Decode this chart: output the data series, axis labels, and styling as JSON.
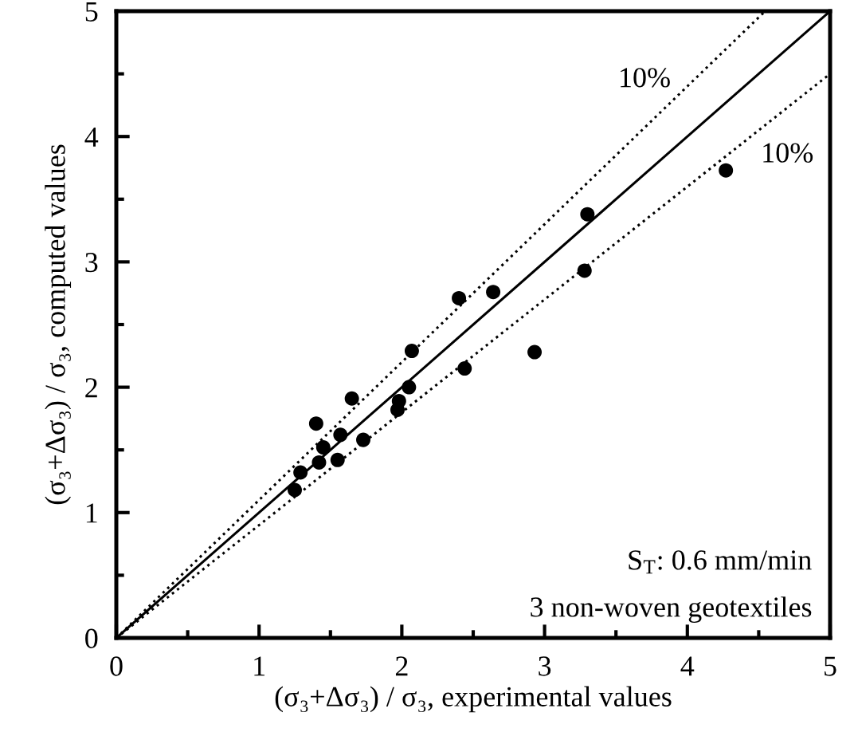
{
  "chart_data": {
    "type": "scatter",
    "xlabel": "(σ₃+Δσ₃) / σ₃, experimental values",
    "ylabel": "(σ₃+Δσ₃) / σ₃, computed values",
    "xlim": [
      0,
      5
    ],
    "ylim": [
      0,
      5
    ],
    "xticks": [
      0,
      {
        "value": 0.5,
        "label": null
      },
      1,
      {
        "value": 1.5,
        "label": null
      },
      2,
      {
        "value": 2.5,
        "label": null
      },
      3,
      {
        "value": 3.5,
        "label": null
      },
      4,
      {
        "value": 4.5,
        "label": null
      },
      5
    ],
    "yticks": [
      0,
      {
        "value": 0.5,
        "label": null
      },
      1,
      {
        "value": 1.5,
        "label": null
      },
      2,
      {
        "value": 2.5,
        "label": null
      },
      3,
      {
        "value": 3.5,
        "label": null
      },
      4,
      {
        "value": 4.5,
        "label": null
      },
      5
    ],
    "grid": false,
    "series": [
      {
        "color": "#000000",
        "marker": "circle",
        "x": [
          1.25,
          1.29,
          1.4,
          1.42,
          1.45,
          1.55,
          1.57,
          1.65,
          1.73,
          1.97,
          1.98,
          2.07,
          2.05,
          2.4,
          2.44,
          2.64,
          2.93,
          3.28,
          3.3,
          4.27
        ],
        "values": [
          1.18,
          1.32,
          1.71,
          1.4,
          1.52,
          1.42,
          1.62,
          1.91,
          1.58,
          1.82,
          1.89,
          2.29,
          2.0,
          2.71,
          2.15,
          2.76,
          2.28,
          2.93,
          3.38,
          3.73
        ]
      },
      {
        "type": "line",
        "color": "#000000",
        "line_style": "solid",
        "x": [
          0,
          5
        ],
        "values": [
          0,
          5
        ]
      },
      {
        "type": "line",
        "color": "#000000",
        "line_style": "dotted",
        "x": [
          0,
          4.545
        ],
        "values": [
          0,
          5
        ]
      },
      {
        "type": "line",
        "color": "#000000",
        "line_style": "dotted",
        "x": [
          0,
          5
        ],
        "values": [
          0,
          4.5
        ]
      }
    ],
    "annotations": [
      "10%",
      "10%",
      "S$_{T}$: 0.6 mm/min",
      "3 non-woven geotextiles"
    ]
  }
}
